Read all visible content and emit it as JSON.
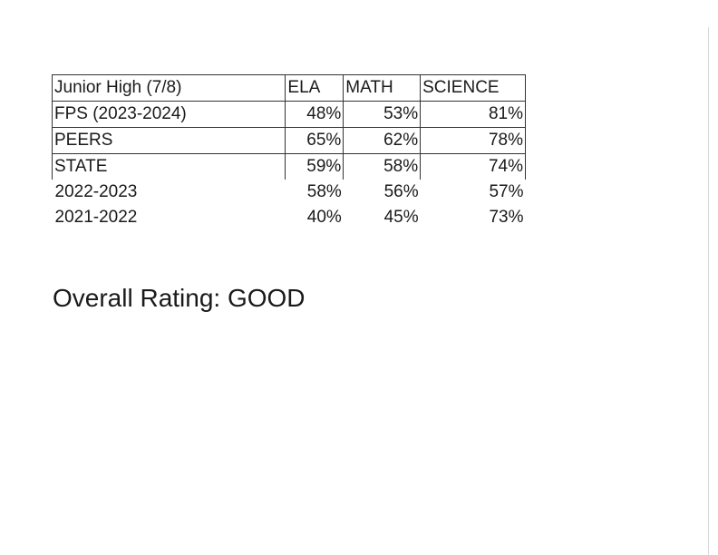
{
  "table": {
    "header": [
      "Junior High (7/8)",
      "ELA",
      "MATH",
      "SCIENCE"
    ],
    "rows": [
      {
        "label": "FPS (2023-2024)",
        "ela": "48%",
        "math": "53%",
        "science": "81%"
      },
      {
        "label": "PEERS",
        "ela": "65%",
        "math": "62%",
        "science": "78%"
      },
      {
        "label": "STATE",
        "ela": "59%",
        "math": "58%",
        "science": "74%"
      },
      {
        "label": "2022-2023",
        "ela": "58%",
        "math": "56%",
        "science": "57%"
      },
      {
        "label": "2021-2022",
        "ela": "40%",
        "math": "45%",
        "science": "73%"
      }
    ]
  },
  "overall_rating": "Overall Rating: GOOD"
}
